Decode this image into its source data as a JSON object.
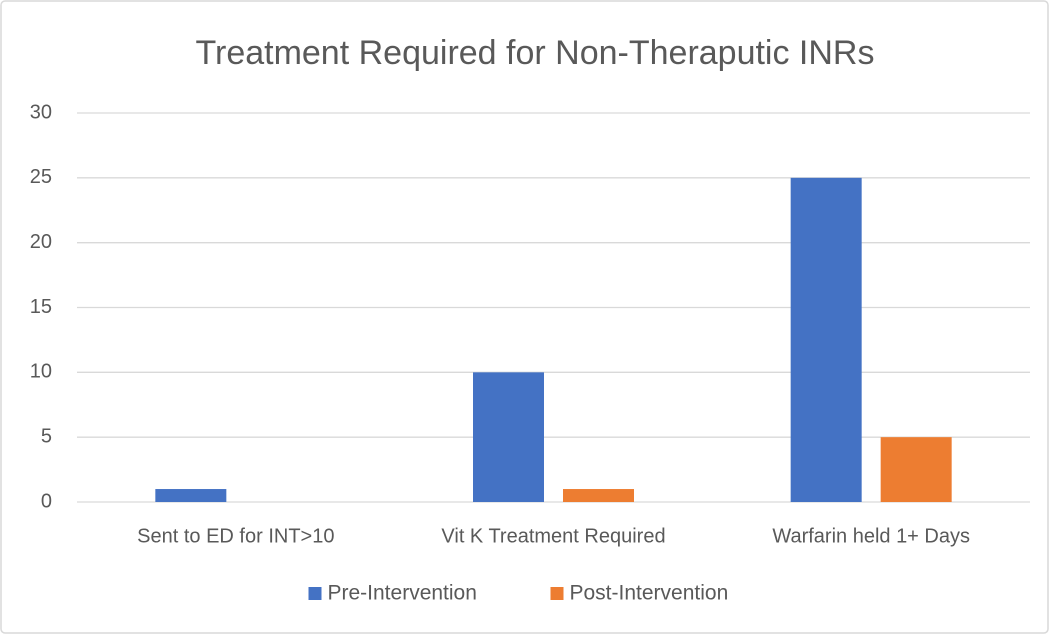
{
  "chart_data": {
    "type": "bar",
    "title": "Treatment Required for Non-Theraputic INRs",
    "categories": [
      "Sent to ED for INT>10",
      "Vit K Treatment Required",
      "Warfarin held 1+ Days"
    ],
    "series": [
      {
        "name": "Pre-Intervention",
        "color": "#4472c4",
        "values": [
          1,
          10,
          25
        ]
      },
      {
        "name": "Post-Intervention",
        "color": "#ed7d31",
        "values": [
          0,
          1,
          5
        ]
      }
    ],
    "ylim": [
      0,
      30
    ],
    "yticks": [
      0,
      5,
      10,
      15,
      20,
      25,
      30
    ],
    "grid": true,
    "legend": "bottom"
  }
}
